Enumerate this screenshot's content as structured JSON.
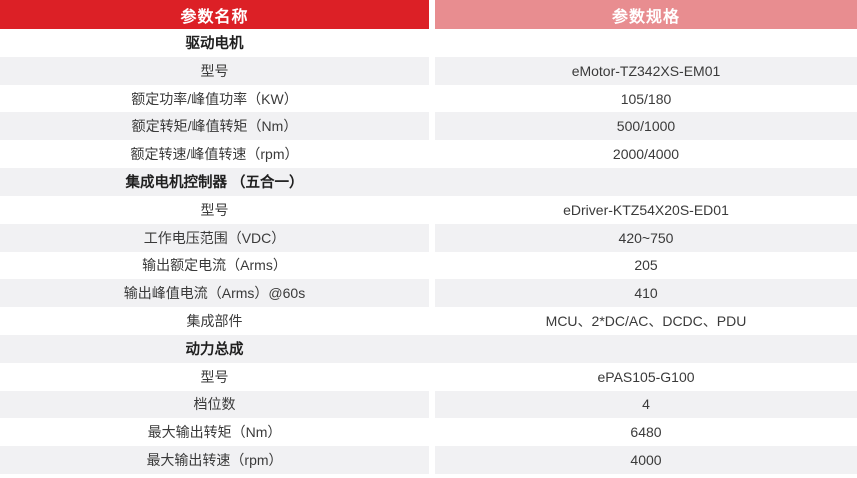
{
  "table": {
    "columns": [
      {
        "label": "参数名称"
      },
      {
        "label": "参数规格"
      }
    ],
    "rows": [
      {
        "type": "section",
        "name": "驱动电机",
        "value": ""
      },
      {
        "type": "param",
        "name": "型号",
        "value": "eMotor-TZ342XS-EM01"
      },
      {
        "type": "param",
        "name": "额定功率/峰值功率（KW）",
        "value": "105/180"
      },
      {
        "type": "param",
        "name": "额定转矩/峰值转矩（Nm）",
        "value": "500/1000"
      },
      {
        "type": "param",
        "name": "额定转速/峰值转速（rpm）",
        "value": "2000/4000"
      },
      {
        "type": "section",
        "name": "集成电机控制器 （五合一）",
        "value": ""
      },
      {
        "type": "param",
        "name": "型号",
        "value": "eDriver-KTZ54X20S-ED01"
      },
      {
        "type": "param",
        "name": "工作电压范围（VDC）",
        "value": "420~750"
      },
      {
        "type": "param",
        "name": "输出额定电流（Arms）",
        "value": "205"
      },
      {
        "type": "param",
        "name": "输出峰值电流（Arms）@60s",
        "value": "410"
      },
      {
        "type": "param",
        "name": "集成部件",
        "value": "MCU、2*DC/AC、DCDC、PDU"
      },
      {
        "type": "section",
        "name": "动力总成",
        "value": ""
      },
      {
        "type": "param",
        "name": "型号",
        "value": "ePAS105-G100"
      },
      {
        "type": "param",
        "name": "档位数",
        "value": "4"
      },
      {
        "type": "param",
        "name": "最大输出转矩（Nm）",
        "value": "6480"
      },
      {
        "type": "param",
        "name": "最大输出转速（rpm）",
        "value": "4000"
      }
    ]
  },
  "colors": {
    "header_left_bg": "#dc2026",
    "header_right_bg": "#e88d90",
    "row_alt_bg": "#f1f1f3",
    "text": "#3a3a3a",
    "section_text": "#1f1f1f",
    "header_text": "#ffffff"
  }
}
